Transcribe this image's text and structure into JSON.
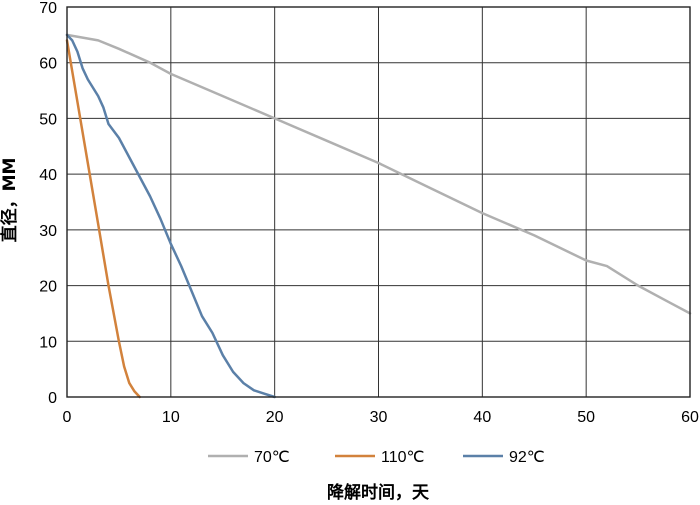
{
  "chart_data": {
    "type": "line",
    "title": "",
    "xlabel": "降解时间，天",
    "ylabel": "直径，MM",
    "xlim": [
      0,
      60
    ],
    "ylim": [
      0,
      70
    ],
    "x_ticks": [
      0,
      10,
      20,
      30,
      40,
      50,
      60
    ],
    "y_ticks": [
      0,
      10,
      20,
      30,
      40,
      50,
      60,
      70
    ],
    "grid": true,
    "legend_position": "bottom",
    "series": [
      {
        "name": "70℃",
        "color": "#b0b0b0",
        "x": [
          0,
          3,
          5,
          8,
          10,
          15,
          20,
          25,
          30,
          35,
          40,
          45,
          50,
          52,
          55,
          58,
          60
        ],
        "y": [
          65,
          64,
          62.5,
          60,
          58,
          54,
          50,
          46,
          42,
          37.5,
          33,
          29,
          24.5,
          23.5,
          20,
          17,
          15
        ]
      },
      {
        "name": "110℃",
        "color": "#d2823c",
        "x": [
          0,
          1,
          2,
          3,
          4,
          5,
          5.5,
          6,
          6.5,
          7
        ],
        "y": [
          64,
          53,
          42,
          31,
          20,
          10,
          5.5,
          2.5,
          1,
          0
        ]
      },
      {
        "name": "92℃",
        "color": "#5b80a8",
        "x": [
          0,
          0.5,
          1,
          1.5,
          2,
          3,
          3.5,
          4,
          5,
          6,
          7,
          8,
          9,
          10,
          11,
          12,
          13,
          14,
          15,
          16,
          17,
          18,
          19,
          20
        ],
        "y": [
          65,
          64,
          62,
          59,
          57,
          54,
          52,
          49,
          46.5,
          43,
          39.5,
          36,
          32,
          27.5,
          23.5,
          19,
          14.5,
          11.5,
          7.5,
          4.5,
          2.5,
          1.2,
          0.6,
          0
        ]
      }
    ]
  }
}
